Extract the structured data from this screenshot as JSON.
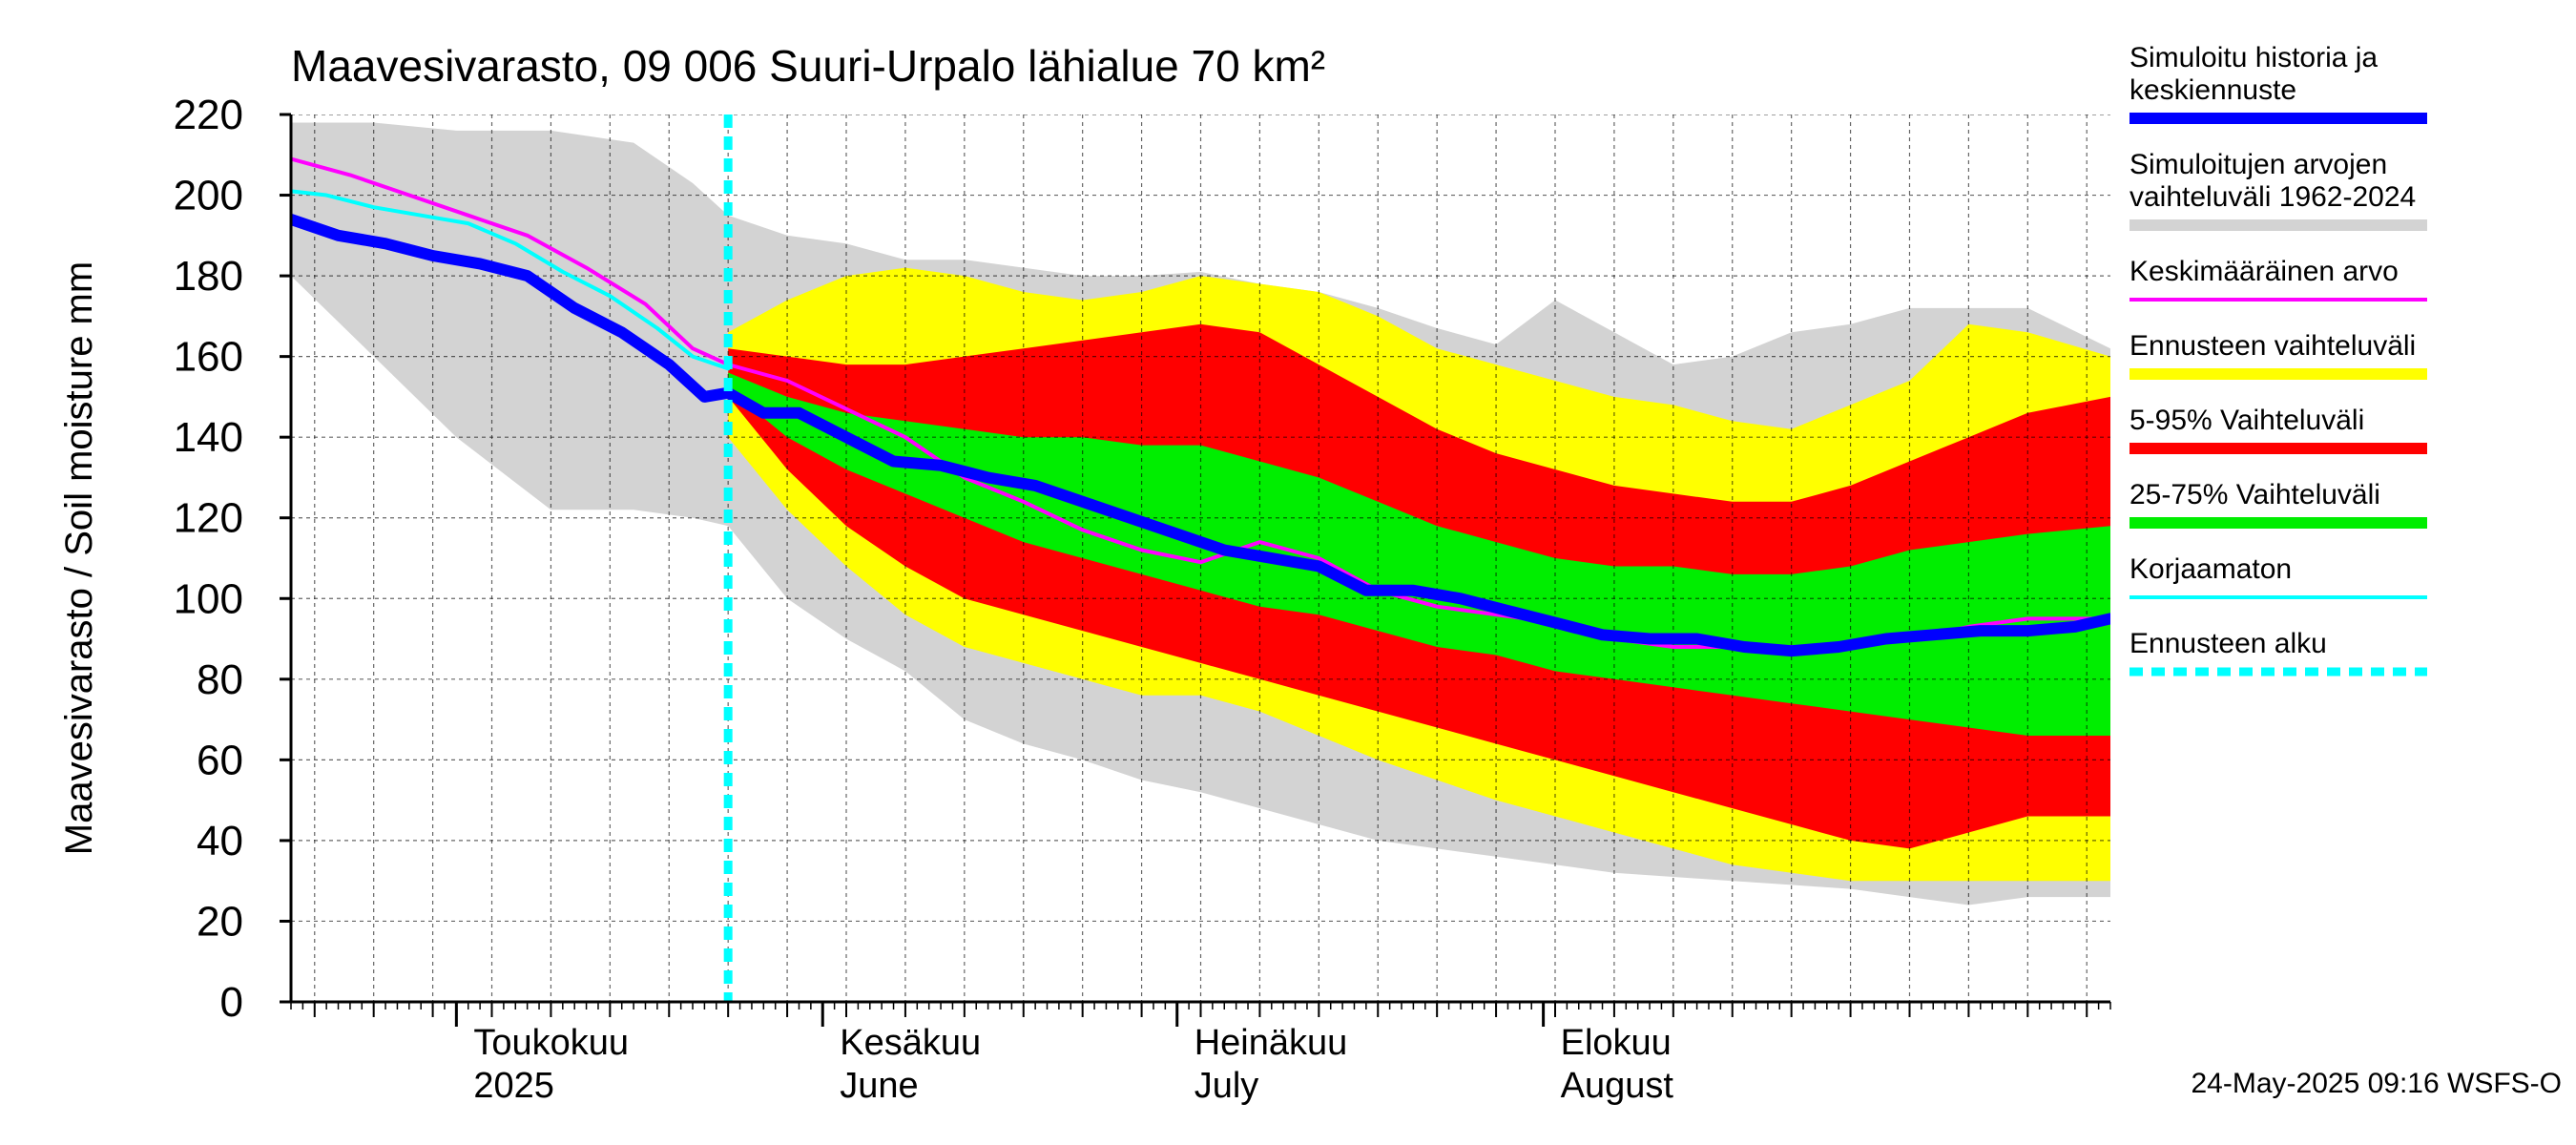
{
  "chart_data": {
    "type": "area",
    "title": "Maavesivarasto, 09 006 Suuri-Urpalo lähialue 70 km²",
    "ylabel": "Maavesivarasto / Soil moisture   mm",
    "ylim": [
      0,
      220
    ],
    "yticks": [
      0,
      20,
      40,
      60,
      80,
      100,
      120,
      140,
      160,
      180,
      200,
      220
    ],
    "x_range_days": [
      -37,
      117
    ],
    "forecast_start_day": 0,
    "month_labels": [
      {
        "line1": "Toukokuu",
        "line2": "2025",
        "day": -23
      },
      {
        "line1": "Kesäkuu",
        "line2": "June",
        "day": 8
      },
      {
        "line1": "Heinäkuu",
        "line2": "July",
        "day": 38
      },
      {
        "line1": "Elokuu",
        "line2": "August",
        "day": 69
      }
    ],
    "month_boundaries": [
      -23,
      8,
      38,
      69
    ],
    "series": [
      {
        "name": "Simuloitujen arvojen vaihteluväli 1962-2024",
        "role": "hist_range",
        "color": "#d3d3d3",
        "x": [
          -37,
          -30,
          -23,
          -15,
          -8,
          -3,
          0,
          5,
          10,
          15,
          20,
          25,
          30,
          35,
          40,
          45,
          50,
          55,
          60,
          65,
          70,
          75,
          80,
          85,
          90,
          95,
          100,
          105,
          110,
          117
        ],
        "upper": [
          218,
          218,
          216,
          216,
          213,
          203,
          195,
          190,
          188,
          184,
          184,
          182,
          180,
          180,
          181,
          178,
          176,
          172,
          167,
          163,
          174,
          166,
          158,
          160,
          166,
          168,
          172,
          172,
          172,
          162
        ],
        "lower": [
          180,
          160,
          140,
          122,
          122,
          120,
          118,
          100,
          90,
          82,
          70,
          64,
          60,
          55,
          52,
          48,
          44,
          40,
          38,
          36,
          34,
          32,
          31,
          30,
          29,
          28,
          26,
          24,
          26,
          26
        ]
      },
      {
        "name": "Ennusteen vaihteluväli",
        "role": "forecast_range",
        "color": "#ffff00",
        "x": [
          0,
          5,
          10,
          15,
          20,
          25,
          30,
          35,
          40,
          45,
          50,
          55,
          60,
          65,
          70,
          75,
          80,
          85,
          90,
          95,
          100,
          105,
          110,
          117
        ],
        "upper": [
          166,
          174,
          180,
          182,
          180,
          176,
          174,
          176,
          180,
          178,
          176,
          170,
          162,
          158,
          154,
          150,
          148,
          144,
          142,
          148,
          154,
          168,
          166,
          160
        ],
        "lower": [
          140,
          122,
          108,
          96,
          88,
          84,
          80,
          76,
          76,
          72,
          66,
          60,
          55,
          50,
          46,
          42,
          38,
          34,
          32,
          30,
          30,
          30,
          30,
          30
        ]
      },
      {
        "name": "5-95% Vaihteluväli",
        "role": "p5_95",
        "color": "#ff0000",
        "x": [
          0,
          5,
          10,
          15,
          20,
          25,
          30,
          35,
          40,
          45,
          50,
          55,
          60,
          65,
          70,
          75,
          80,
          85,
          90,
          95,
          100,
          105,
          110,
          117
        ],
        "upper": [
          162,
          160,
          158,
          158,
          160,
          162,
          164,
          166,
          168,
          166,
          158,
          150,
          142,
          136,
          132,
          128,
          126,
          124,
          124,
          128,
          134,
          140,
          146,
          150
        ],
        "lower": [
          150,
          132,
          118,
          108,
          100,
          96,
          92,
          88,
          84,
          80,
          76,
          72,
          68,
          64,
          60,
          56,
          52,
          48,
          44,
          40,
          38,
          42,
          46,
          46
        ]
      },
      {
        "name": "25-75% Vaihteluväli",
        "role": "p25_75",
        "color": "#00ee00",
        "x": [
          0,
          5,
          10,
          15,
          20,
          25,
          30,
          35,
          40,
          45,
          50,
          55,
          60,
          65,
          70,
          75,
          80,
          85,
          90,
          95,
          100,
          105,
          110,
          117
        ],
        "upper": [
          156,
          150,
          146,
          144,
          142,
          140,
          140,
          138,
          138,
          134,
          130,
          124,
          118,
          114,
          110,
          108,
          108,
          106,
          106,
          108,
          112,
          114,
          116,
          118
        ],
        "lower": [
          152,
          140,
          132,
          126,
          120,
          114,
          110,
          106,
          102,
          98,
          96,
          92,
          88,
          86,
          82,
          80,
          78,
          76,
          74,
          72,
          70,
          68,
          66,
          66
        ]
      },
      {
        "name": "Korjaamaton",
        "role": "uncorrected",
        "color": "#00ffff",
        "x": [
          -37,
          -34,
          -30,
          -26,
          -22,
          -18,
          -14,
          -10,
          -6,
          -3,
          0
        ],
        "values": [
          201,
          200,
          197,
          195,
          193,
          188,
          181,
          175,
          167,
          160,
          157
        ]
      },
      {
        "name": "Keskimääräinen arvo",
        "role": "mean",
        "color": "#ff00ff",
        "x": [
          -37,
          -32,
          -27,
          -22,
          -17,
          -12,
          -7,
          -3,
          0,
          5,
          10,
          15,
          20,
          25,
          30,
          35,
          40,
          45,
          50,
          55,
          60,
          65,
          70,
          75,
          80,
          85,
          90,
          95,
          100,
          105,
          110,
          117
        ],
        "values": [
          209,
          205,
          200,
          195,
          190,
          182,
          173,
          162,
          158,
          154,
          147,
          140,
          130,
          124,
          117,
          112,
          109,
          114,
          110,
          102,
          98,
          96,
          94,
          90,
          88,
          88,
          88,
          88,
          90,
          93,
          95,
          95
        ]
      },
      {
        "name": "Simuloitu historia ja keskiennuste",
        "role": "history_median",
        "color": "#0000ff",
        "x": [
          -37,
          -33,
          -29,
          -25,
          -21,
          -17,
          -13,
          -9,
          -5,
          -2,
          0,
          3,
          6,
          10,
          14,
          18,
          22,
          26,
          30,
          34,
          38,
          42,
          46,
          50,
          54,
          58,
          62,
          66,
          70,
          74,
          78,
          82,
          86,
          90,
          94,
          98,
          102,
          106,
          110,
          114,
          117
        ],
        "values": [
          194,
          190,
          188,
          185,
          183,
          180,
          172,
          166,
          158,
          150,
          151,
          146,
          146,
          140,
          134,
          133,
          130,
          128,
          124,
          120,
          116,
          112,
          110,
          108,
          102,
          102,
          100,
          97,
          94,
          91,
          90,
          90,
          88,
          87,
          88,
          90,
          91,
          92,
          92,
          93,
          95
        ]
      }
    ],
    "legend": [
      {
        "label": "Simuloitu historia ja keskiennuste",
        "color": "#0000ff",
        "style": "thick"
      },
      {
        "label": "Simuloitujen arvojen vaihteluväli 1962-2024",
        "color": "#d3d3d3",
        "style": "thick"
      },
      {
        "label": "Keskimääräinen arvo",
        "color": "#ff00ff",
        "style": "thin"
      },
      {
        "label": "Ennusteen vaihteluväli",
        "color": "#ffff00",
        "style": "thick"
      },
      {
        "label": "5-95% Vaihteluväli",
        "color": "#ff0000",
        "style": "thick"
      },
      {
        "label": "25-75% Vaihteluväli",
        "color": "#00ee00",
        "style": "thick"
      },
      {
        "label": "Korjaamaton",
        "color": "#00ffff",
        "style": "thin"
      },
      {
        "label": "Ennusteen alku",
        "color": "#00ffff",
        "style": "dashed"
      }
    ],
    "footer": "24-May-2025 09:16 WSFS-O"
  }
}
